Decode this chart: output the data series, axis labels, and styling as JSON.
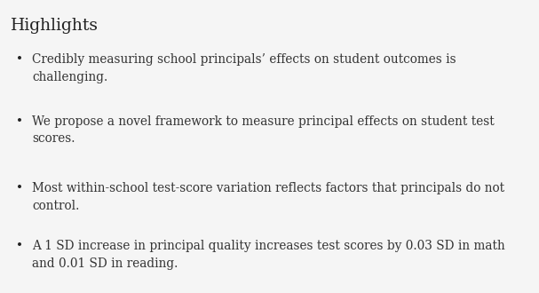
{
  "background_color": "#f5f5f5",
  "panel_color": "#f5f5f5",
  "title": "Highlights",
  "title_fontsize": 13.5,
  "title_color": "#222222",
  "title_font_weight": "normal",
  "title_fontstyle": "normal",
  "bullet_color": "#222222",
  "bullet_fontsize": 9.8,
  "bullet_char": "•",
  "text_color": "#333333",
  "bullets": [
    "Credibly measuring school principals’ effects on student outcomes is\nchallenging.",
    "We propose a novel framework to measure principal effects on student test\nscores.",
    "Most within-school test-score variation reflects factors that principals do not\ncontrol.",
    "A 1 SD increase in principal quality increases test scores by 0.03 SD in math\nand 0.01 SD in reading."
  ],
  "figwidth": 6.07,
  "figheight": 3.3,
  "dpi": 100
}
